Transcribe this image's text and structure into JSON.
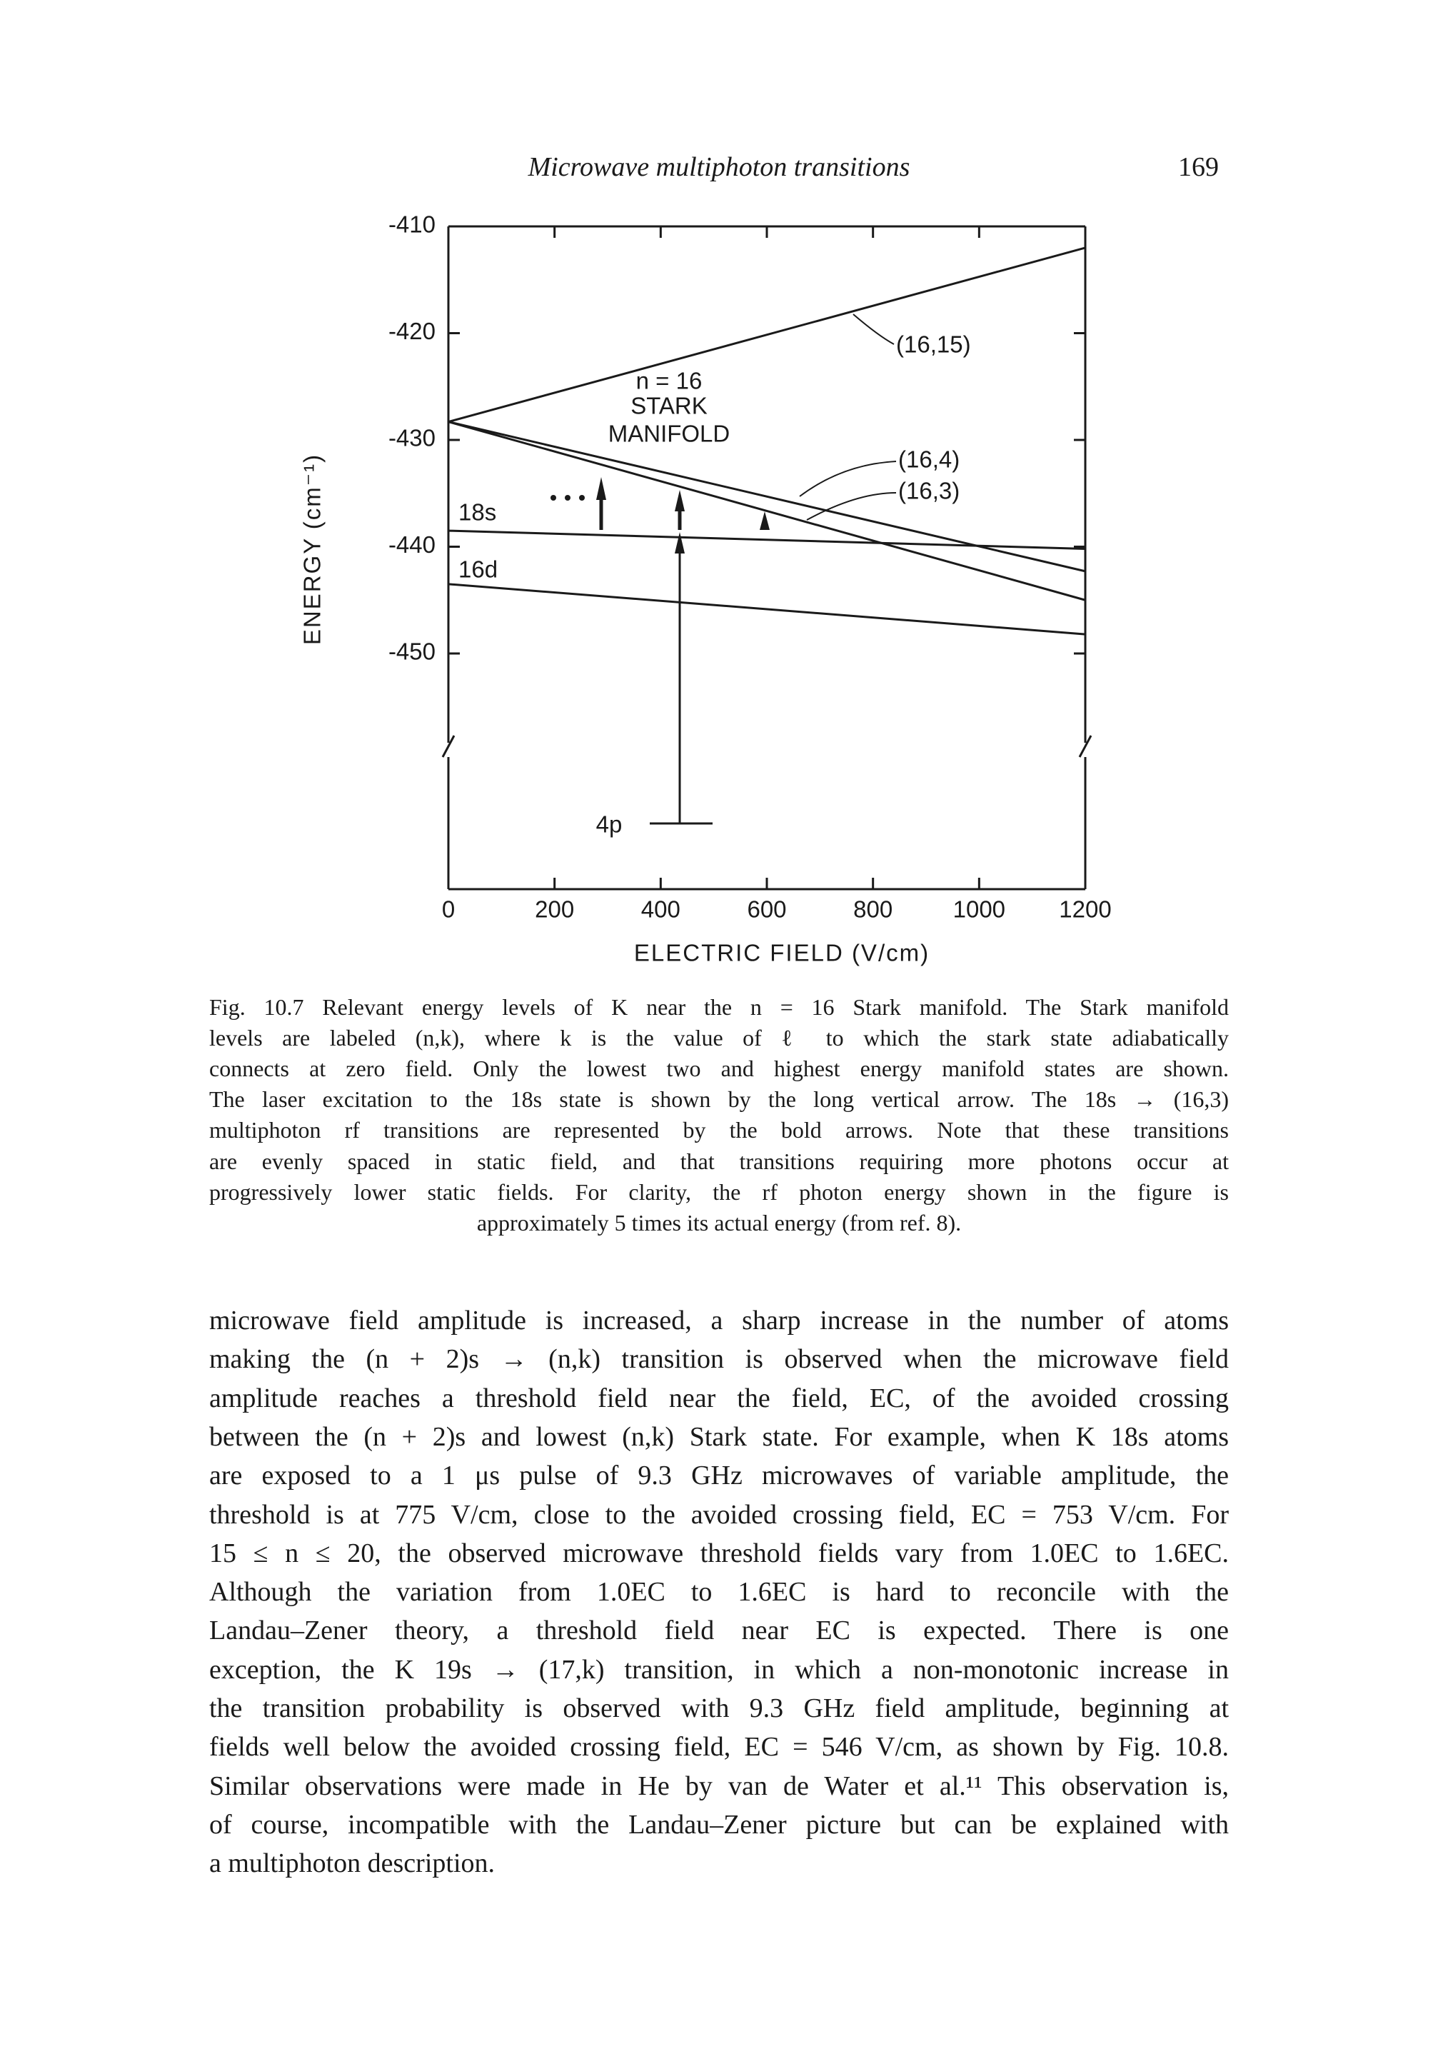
{
  "header": {
    "title": "Microwave multiphoton transitions",
    "page": "169"
  },
  "chart_data": {
    "type": "line",
    "color": "#1a1a1a",
    "xlabel": "ELECTRIC FIELD (V/cm)",
    "ylabel": "ENERGY (cm⁻¹)",
    "x": [
      0,
      1200
    ],
    "series": [
      {
        "name": "(16,15)",
        "values": [
          -428.3,
          -412
        ]
      },
      {
        "name": "(16,4)",
        "values": [
          -428.3,
          -442.3
        ]
      },
      {
        "name": "(16,3)",
        "values": [
          -428.3,
          -445
        ]
      },
      {
        "name": "18s",
        "values": [
          -438.5,
          -440.2
        ]
      },
      {
        "name": "16d",
        "values": [
          -443.5,
          -448.2
        ]
      }
    ],
    "annotations": [
      "n = 16",
      "STARK",
      "MANIFOLD",
      "4p"
    ],
    "xlim": [
      0,
      1200
    ],
    "xticks": [
      0,
      200,
      400,
      600,
      800,
      1000,
      1200
    ],
    "ylim": [
      -450,
      -410
    ],
    "yticks": [
      -410,
      -420,
      -430,
      -440,
      -450
    ],
    "grid": false
  },
  "caption": [
    "Fig. 10.7 Relevant energy levels of K near the n = 16 Stark manifold. The Stark manifold",
    "levels are labeled (n,k), where k is the value of ℓ to which the stark state adiabatically",
    "connects at zero field. Only the lowest two and highest energy manifold states are shown.",
    "The laser excitation to the 18s state is shown by the long vertical arrow. The 18s → (16,3)",
    "multiphoton rf transitions are represented by the bold arrows. Note that these transitions",
    "are evenly spaced in static field, and that transitions requiring more photons occur at",
    "progressively lower static fields. For clarity, the rf photon energy shown in the figure is",
    "approximately 5 times its actual energy (from ref. 8)."
  ],
  "body": [
    "microwave field amplitude is increased, a sharp increase in the number of atoms",
    "making the (n + 2)s → (n,k) transition is observed when the microwave field",
    "amplitude reaches a threshold field near the field, EC, of the avoided crossing",
    "between the (n + 2)s and lowest (n,k) Stark state. For example, when K 18s atoms",
    "are exposed to a 1 μs pulse of 9.3 GHz microwaves of variable amplitude, the",
    "threshold is at 775 V/cm, close to the avoided crossing field, EC = 753 V/cm. For",
    "15 ≤ n ≤ 20, the observed microwave threshold fields vary from 1.0EC to 1.6EC.",
    "Although the variation from 1.0EC to 1.6EC is hard to reconcile with the",
    "Landau–Zener theory, a threshold field near EC is expected. There is one",
    "exception, the K 19s → (17,k) transition, in which a non-monotonic increase in",
    "the transition probability is observed with 9.3 GHz field amplitude, beginning at",
    "fields well below the avoided crossing field, EC = 546 V/cm, as shown by Fig. 10.8.",
    "Similar observations were made in He by van de Water et al.¹¹ This observation is,",
    "of course, incompatible with the Landau–Zener picture but can be explained with",
    "a multiphoton description."
  ]
}
